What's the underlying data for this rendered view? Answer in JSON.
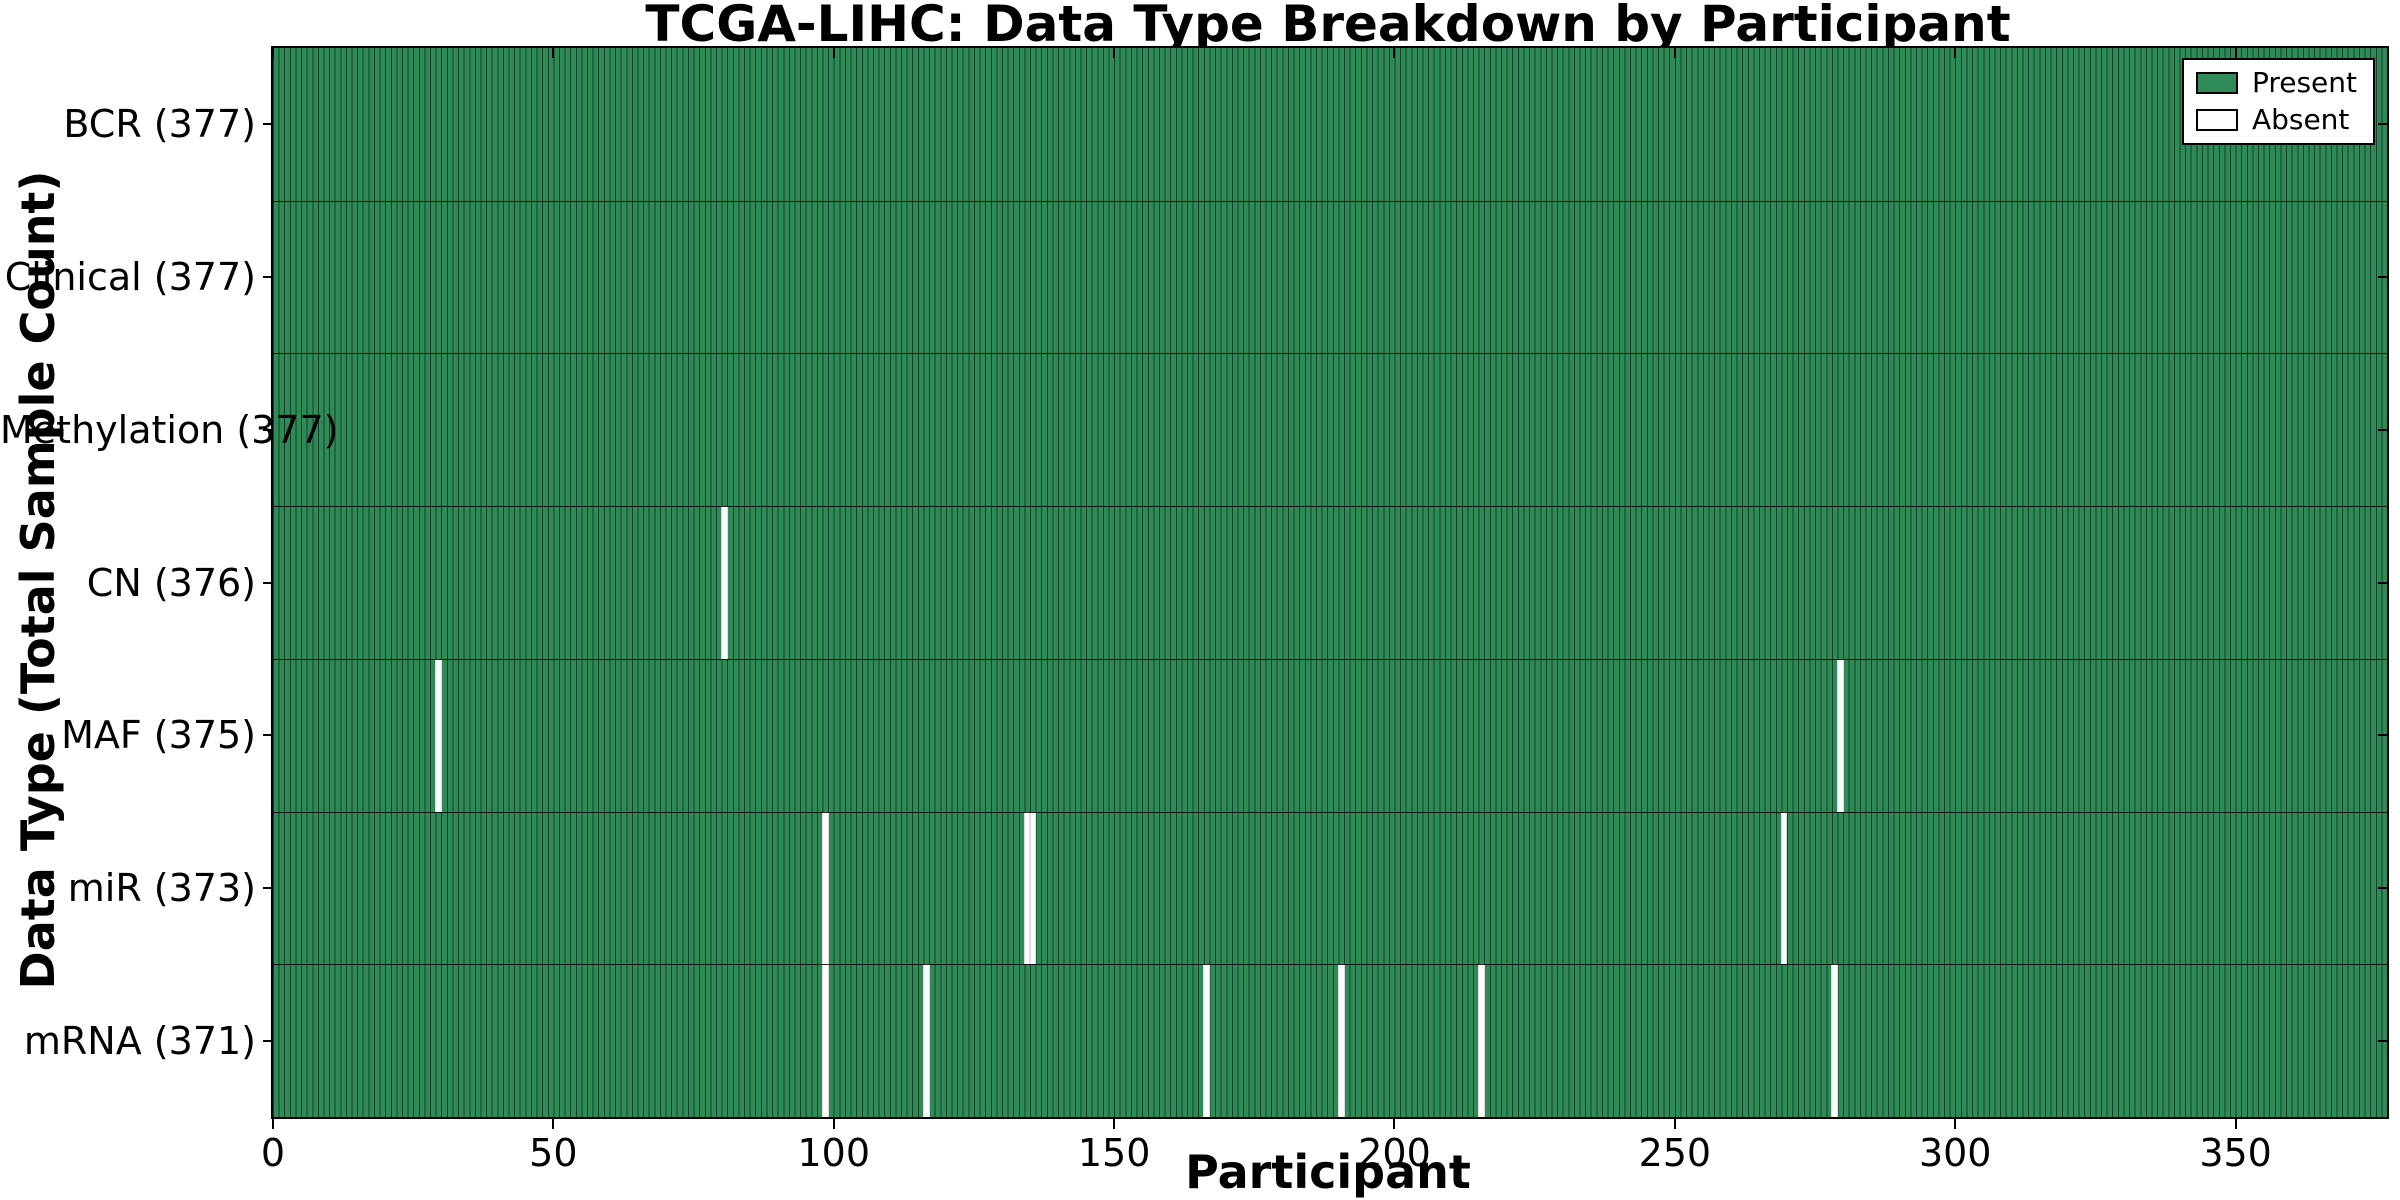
{
  "chart_data": {
    "type": "heatmap",
    "title": "TCGA-LIHC: Data Type Breakdown by Participant",
    "xlabel": "Participant",
    "ylabel": "Data Type (Total Sample Count)",
    "x_range": [
      0,
      377
    ],
    "x_ticks": [
      0,
      50,
      100,
      150,
      200,
      250,
      300,
      350
    ],
    "participants_total": 377,
    "grid": false,
    "legend_position": "upper right",
    "rows": [
      {
        "name": "BCR",
        "label": "BCR (377)",
        "present_count": 377,
        "absent_participants": []
      },
      {
        "name": "Clinical",
        "label": "Clinical (377)",
        "present_count": 377,
        "absent_participants": []
      },
      {
        "name": "Methylation",
        "label": "Methylation (377)",
        "present_count": 377,
        "absent_participants": []
      },
      {
        "name": "CN",
        "label": "CN (376)",
        "present_count": 376,
        "absent_participants": [
          80
        ]
      },
      {
        "name": "MAF",
        "label": "MAF (375)",
        "present_count": 375,
        "absent_participants": [
          29,
          279
        ]
      },
      {
        "name": "miR",
        "label": "miR (373)",
        "present_count": 373,
        "absent_participants": [
          98,
          134,
          135,
          269
        ]
      },
      {
        "name": "mRNA",
        "label": "mRNA (371)",
        "present_count": 371,
        "absent_participants": [
          98,
          116,
          166,
          190,
          215,
          278
        ]
      }
    ],
    "legend": [
      {
        "label": "Present",
        "color": "#2e8b57"
      },
      {
        "label": "Absent",
        "color": "#ffffff"
      }
    ],
    "colors": {
      "present": "#2e8b57",
      "absent": "#ffffff",
      "bar_edge": "#000000",
      "row_separator": "#000000",
      "axis": "#000000",
      "background": "#ffffff"
    }
  }
}
